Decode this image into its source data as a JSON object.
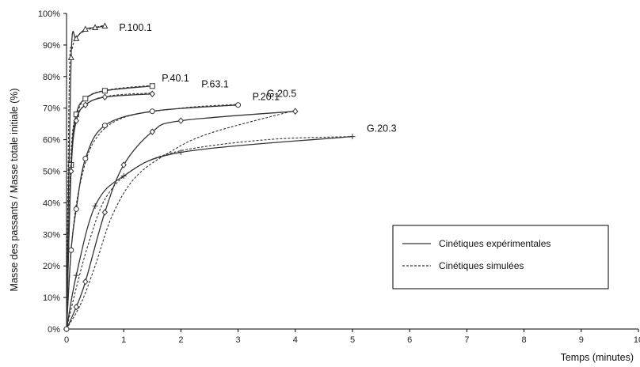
{
  "chart_data": {
    "type": "line",
    "xlabel": "Temps (minutes)",
    "ylabel": "Masse des passants / Masse totale initiale (%)",
    "xlim": [
      0,
      10
    ],
    "ylim": [
      0,
      100
    ],
    "x_ticks": [
      "0",
      "1",
      "2",
      "3",
      "4",
      "5",
      "6",
      "7",
      "8",
      "9",
      "10"
    ],
    "y_ticks": [
      "0%",
      "10%",
      "20%",
      "30%",
      "40%",
      "50%",
      "60%",
      "70%",
      "80%",
      "90%",
      "100%"
    ],
    "grid": false,
    "legend": {
      "position": "right",
      "entries": [
        "Cinétiques expérimentales",
        "Cinétiques simulées"
      ]
    },
    "colors": {
      "line": "#333333",
      "axis": "#000000"
    },
    "series": [
      {
        "name": "P.100.1",
        "marker": "triangle",
        "experimental": [
          [
            0,
            0
          ],
          [
            0.08,
            86
          ],
          [
            0.17,
            92
          ],
          [
            0.33,
            95
          ],
          [
            0.5,
            95.5
          ],
          [
            0.67,
            96
          ]
        ],
        "simulated": [
          [
            0,
            0
          ],
          [
            0.05,
            80
          ],
          [
            0.1,
            89
          ],
          [
            0.2,
            93
          ],
          [
            0.4,
            95
          ],
          [
            0.67,
            96.3
          ]
        ]
      },
      {
        "name": "P.40.1",
        "marker": "square",
        "experimental": [
          [
            0,
            0
          ],
          [
            0.08,
            52
          ],
          [
            0.17,
            68
          ],
          [
            0.33,
            73
          ],
          [
            0.67,
            75.5
          ],
          [
            1.5,
            77
          ]
        ],
        "simulated": [
          [
            0,
            0
          ],
          [
            0.08,
            56
          ],
          [
            0.2,
            69
          ],
          [
            0.4,
            74
          ],
          [
            0.8,
            76
          ],
          [
            1.5,
            77.2
          ]
        ]
      },
      {
        "name": "P.63.1",
        "marker": "diamond",
        "experimental": [
          [
            0,
            0
          ],
          [
            0.08,
            50
          ],
          [
            0.17,
            66
          ],
          [
            0.33,
            71
          ],
          [
            0.67,
            73.5
          ],
          [
            1.5,
            74.5
          ]
        ],
        "simulated": [
          [
            0,
            0
          ],
          [
            0.08,
            54
          ],
          [
            0.2,
            67.5
          ],
          [
            0.4,
            72
          ],
          [
            0.8,
            74
          ],
          [
            1.5,
            74.8
          ]
        ]
      },
      {
        "name": "P.20.1",
        "marker": "circle",
        "experimental": [
          [
            0,
            0
          ],
          [
            0.08,
            25
          ],
          [
            0.17,
            38
          ],
          [
            0.33,
            54
          ],
          [
            0.67,
            64.5
          ],
          [
            1.5,
            69
          ],
          [
            3,
            71
          ]
        ],
        "simulated": [
          [
            0,
            0
          ],
          [
            0.1,
            29
          ],
          [
            0.25,
            47
          ],
          [
            0.5,
            60
          ],
          [
            1,
            67
          ],
          [
            2,
            70
          ],
          [
            3,
            71.2
          ]
        ]
      },
      {
        "name": "G.20.5",
        "marker": "diamond",
        "experimental": [
          [
            0,
            0
          ],
          [
            0.17,
            7
          ],
          [
            0.33,
            15
          ],
          [
            0.67,
            37
          ],
          [
            1,
            52
          ],
          [
            1.5,
            62.5
          ],
          [
            2,
            66
          ],
          [
            4,
            69
          ]
        ],
        "simulated": [
          [
            0,
            0
          ],
          [
            0.25,
            8
          ],
          [
            0.5,
            20
          ],
          [
            0.8,
            36
          ],
          [
            1.2,
            48
          ],
          [
            1.8,
            56
          ],
          [
            2.5,
            62
          ],
          [
            4,
            69.3
          ]
        ]
      },
      {
        "name": "G.20.3",
        "marker": "plus",
        "experimental": [
          [
            0,
            0
          ],
          [
            0.17,
            17
          ],
          [
            0.5,
            39
          ],
          [
            1,
            48.5
          ],
          [
            2,
            56
          ],
          [
            5,
            61
          ]
        ],
        "simulated": [
          [
            0,
            0
          ],
          [
            0.17,
            13
          ],
          [
            0.4,
            28
          ],
          [
            0.7,
            42
          ],
          [
            1.2,
            51
          ],
          [
            2,
            56.5
          ],
          [
            3.5,
            60
          ],
          [
            5,
            61
          ]
        ]
      }
    ]
  }
}
